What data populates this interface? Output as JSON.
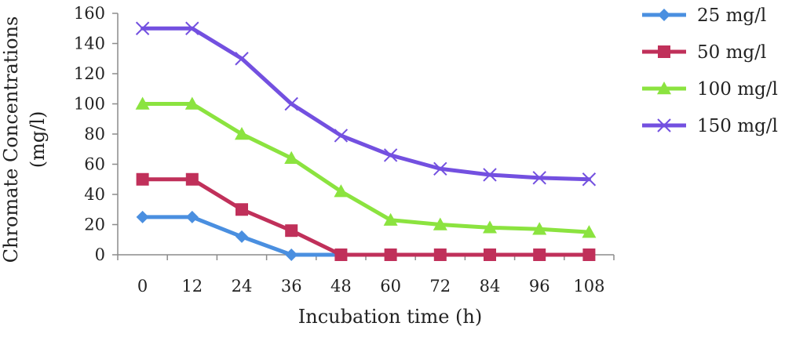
{
  "chart_data": {
    "type": "line",
    "title": "",
    "xlabel": "Incubation time (h)",
    "ylabel_lines": [
      "Chromate Concentrations",
      "(mg/l)"
    ],
    "categories": [
      "0",
      "12",
      "24",
      "36",
      "48",
      "60",
      "72",
      "84",
      "96",
      "108"
    ],
    "ylim": [
      0,
      160
    ],
    "yticks": [
      0,
      20,
      40,
      60,
      80,
      100,
      120,
      140,
      160
    ],
    "grid": false,
    "legend_position": "right",
    "series": [
      {
        "name": "25 mg/l",
        "color": "#4a8fe0",
        "marker": "diamond",
        "values": [
          25,
          25,
          12,
          0,
          0,
          null,
          null,
          null,
          null,
          null
        ]
      },
      {
        "name": "50 mg/l",
        "color": "#c0305a",
        "marker": "square",
        "values": [
          50,
          50,
          30,
          16,
          0,
          0,
          0,
          0,
          0,
          0
        ]
      },
      {
        "name": "100 mg/l",
        "color": "#8be33f",
        "marker": "triangle",
        "values": [
          100,
          100,
          80,
          64,
          42,
          23,
          20,
          18,
          17,
          15
        ]
      },
      {
        "name": "150 mg/l",
        "color": "#7350e0",
        "marker": "x",
        "values": [
          150,
          150,
          130,
          100,
          79,
          66,
          57,
          53,
          51,
          50
        ]
      }
    ]
  }
}
